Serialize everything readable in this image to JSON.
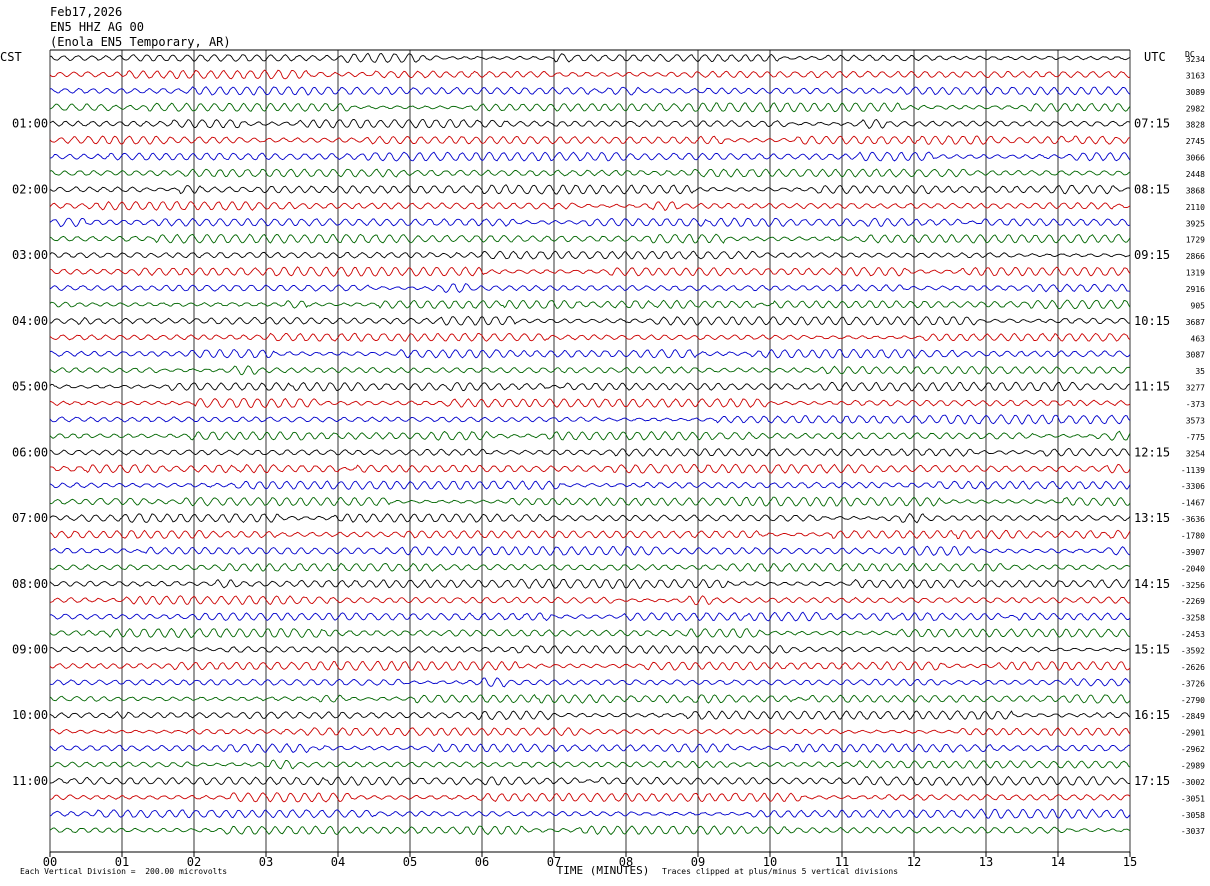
{
  "header": {
    "date": "Feb17,2026",
    "channel": "EN5 HHZ AG 00",
    "station": "(Enola EN5 Temporary, AR)"
  },
  "left_timezone": "CST",
  "right_timezone": "UTC",
  "dc_label": "DC",
  "footer": {
    "scale": "Each Vertical Division =  200.00 microvolts",
    "xaxis": "TIME (MINUTES)",
    "clip_note": "Traces clipped at plus/minus 5 vertical divisions"
  },
  "colors": {
    "black": "#000000",
    "red": "#cc0000",
    "blue": "#0000cc",
    "green": "#006600",
    "grid": "#000000"
  },
  "chart_data": {
    "type": "line",
    "xlabel": "TIME (MINUTES)",
    "xlim": [
      0,
      15
    ],
    "x_ticks": [
      "00",
      "01",
      "02",
      "03",
      "04",
      "05",
      "06",
      "07",
      "08",
      "09",
      "10",
      "11",
      "12",
      "13",
      "14",
      "15"
    ],
    "trace_minutes": 15,
    "trace_count": 48,
    "trace_color_cycle": [
      "black",
      "red",
      "blue",
      "green"
    ],
    "left_hour_labels": [
      "01:00",
      "02:00",
      "03:00",
      "04:00",
      "05:00",
      "06:00",
      "07:00",
      "08:00",
      "09:00",
      "10:00",
      "11:00"
    ],
    "right_hour_labels": [
      "07:15",
      "08:15",
      "09:15",
      "10:15",
      "11:15",
      "12:15",
      "13:15",
      "14:15",
      "15:15",
      "16:15",
      "17:15"
    ],
    "dc_offsets": [
      "3234",
      "3163",
      "3089",
      "2982",
      "3828",
      "2745",
      "3066",
      "2448",
      "3868",
      "2110",
      "3925",
      "1729",
      "2866",
      "1319",
      "2916",
      "905",
      "3687",
      "463",
      "3087",
      "35",
      "3277",
      "-373",
      "3573",
      "-775",
      "3254",
      "-1139",
      "-3306",
      "-1467",
      "-3636",
      "-1780",
      "-3907",
      "-2040",
      "-3256",
      "-2269",
      "-3258",
      "-2453",
      "-3592",
      "-2626",
      "-3726",
      "-2790",
      "-2849",
      "-2901",
      "-2962",
      "-2989",
      "-3002",
      "-3051",
      "-3058",
      "-3037"
    ]
  }
}
